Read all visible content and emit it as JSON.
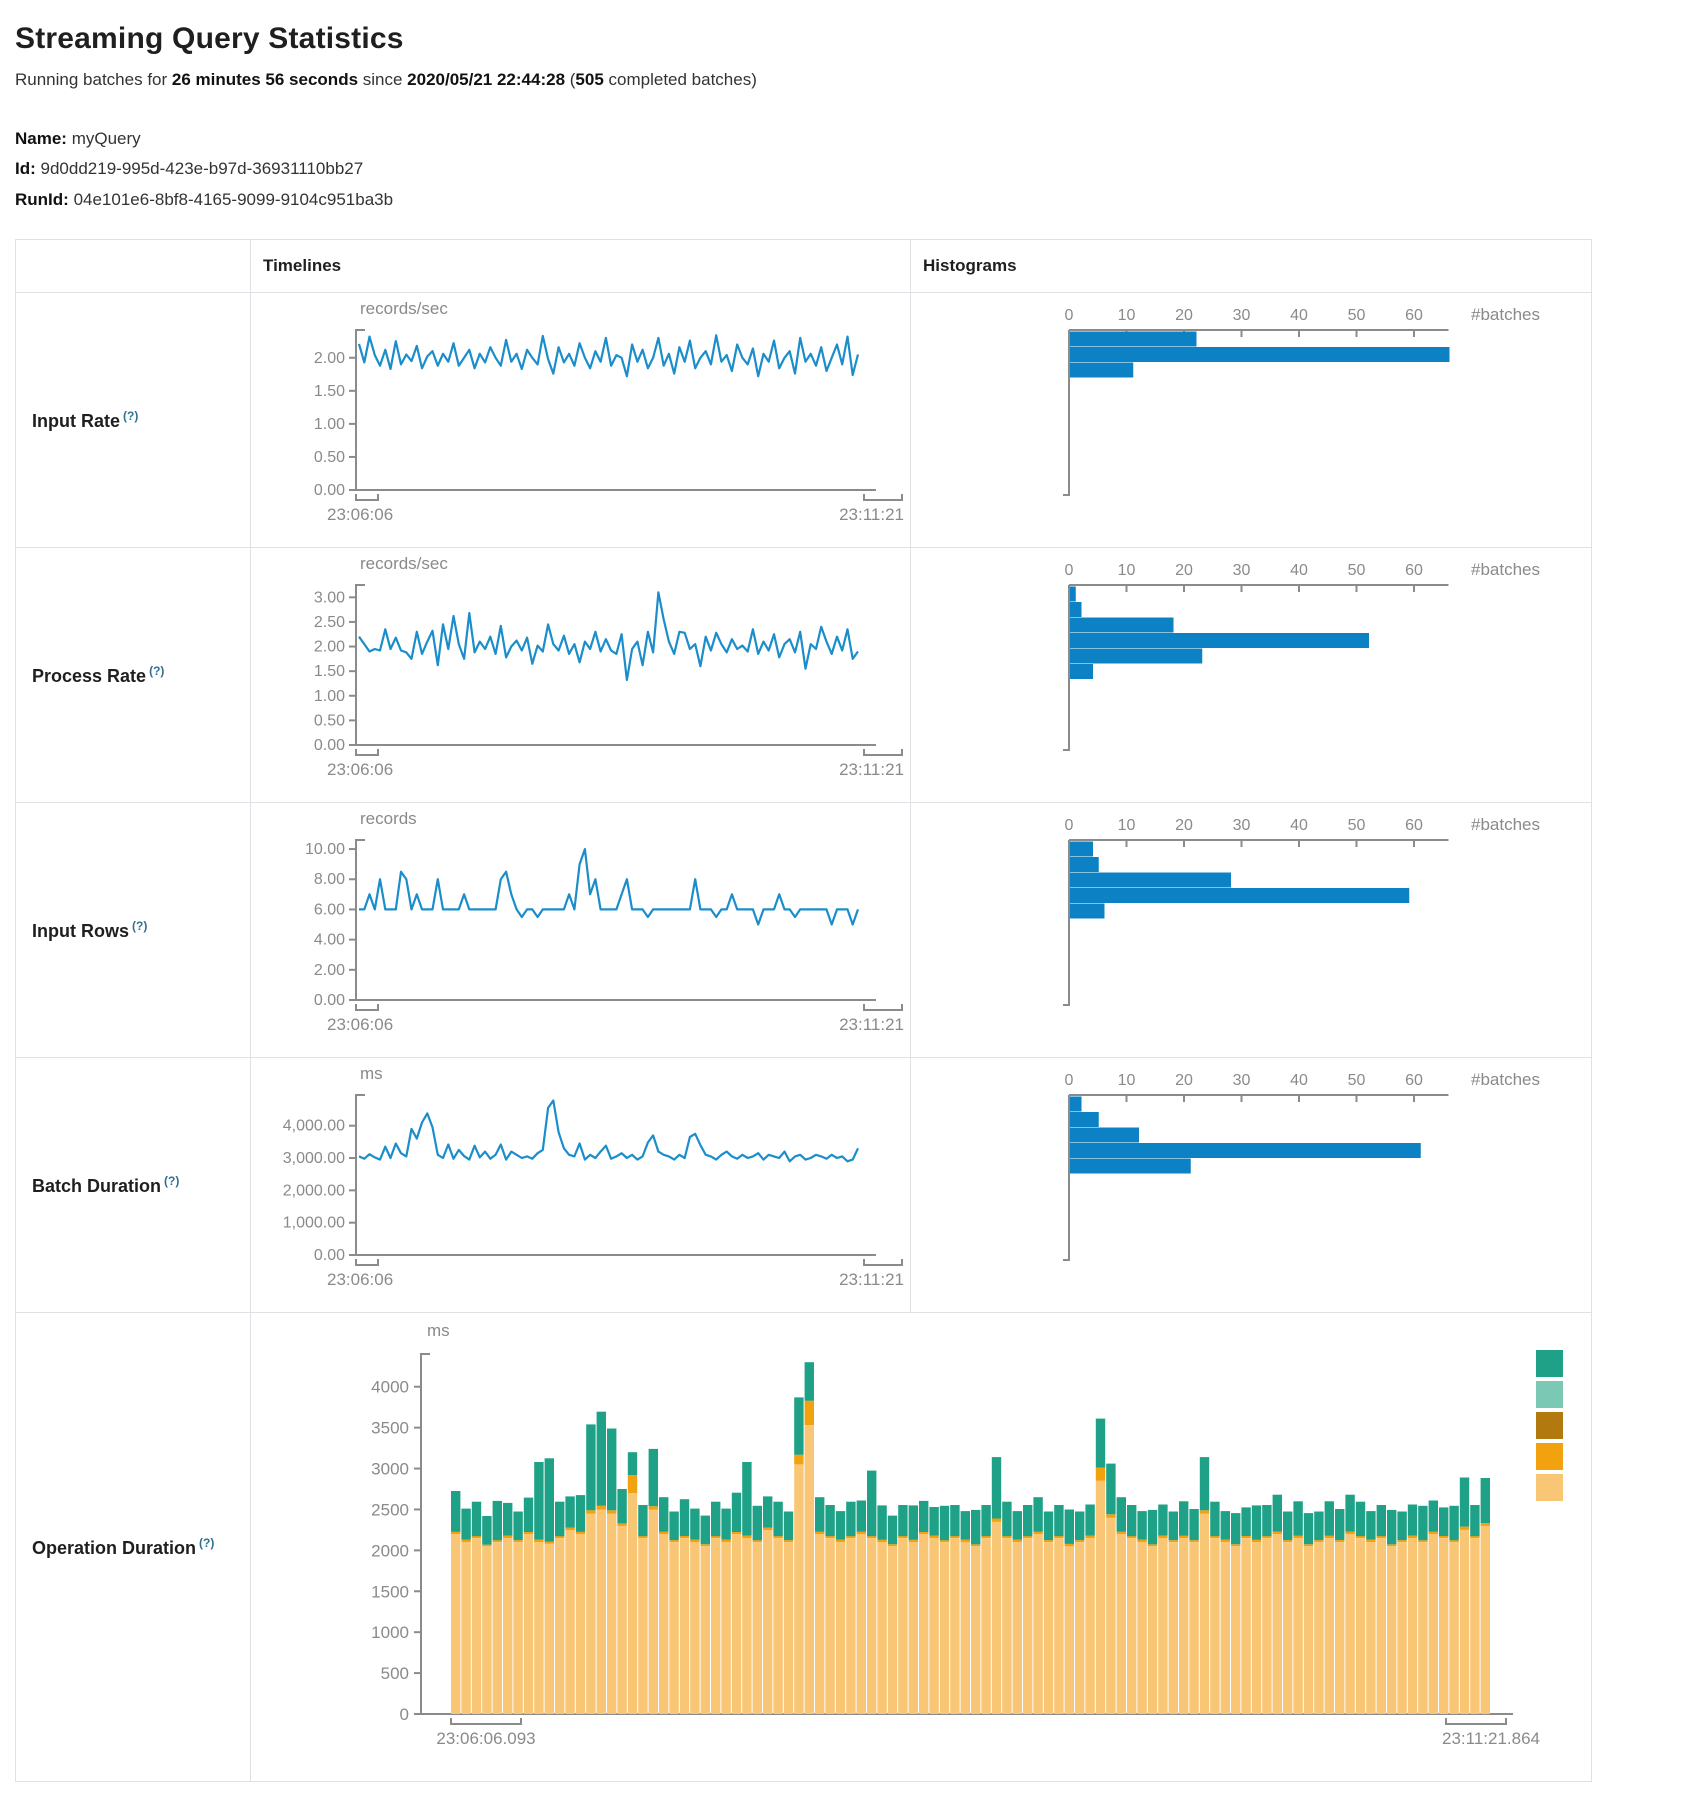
{
  "header": {
    "title": "Streaming Query Statistics",
    "running_prefix": "Running batches for ",
    "duration": "26 minutes 56 seconds",
    "since_text": " since ",
    "start_time": "2020/05/21 22:44:28",
    "batches_open": " (",
    "batches_count": "505",
    "batches_suffix": " completed batches)",
    "name_label": "Name:",
    "name_value": "myQuery",
    "id_label": "Id:",
    "id_value": "9d0dd219-995d-423e-b97d-36931110bb27",
    "runid_label": "RunId:",
    "runid_value": "04e101e6-8bf8-4165-9099-9104c951ba3b"
  },
  "table": {
    "col_timelines": "Timelines",
    "col_histograms": "Histograms",
    "rows": [
      {
        "label": "Input Rate",
        "help": "(?)"
      },
      {
        "label": "Process Rate",
        "help": "(?)"
      },
      {
        "label": "Input Rows",
        "help": "(?)"
      },
      {
        "label": "Batch Duration",
        "help": "(?)"
      },
      {
        "label": "Operation Duration",
        "help": "(?)"
      }
    ]
  },
  "colors": {
    "line": "#1b8dcb",
    "hist_bar": "#0c82c4",
    "axis": "#8b8b8b",
    "tick_text": "#8a8a8a",
    "teal": "#1fa187",
    "light_teal": "#7bc8b5",
    "ochre": "#b2790e",
    "orange": "#f2a10f",
    "tan": "#f8c674"
  },
  "chart_data": {
    "time_axis": {
      "start": "23:06:06",
      "end": "23:11:21"
    },
    "hist_axis": {
      "xticks": [
        "0",
        "10",
        "20",
        "30",
        "40",
        "50",
        "60"
      ],
      "xtick_values": [
        0,
        10,
        20,
        30,
        40,
        50,
        60
      ],
      "xmax": 66,
      "xlabel": "#batches"
    },
    "timelines": [
      {
        "name": "input-rate",
        "type": "line",
        "unit": "records/sec",
        "ymax": 2.42,
        "yticks": [
          {
            "v": 0,
            "label": "0.00"
          },
          {
            "v": 0.5,
            "label": "0.50"
          },
          {
            "v": 1,
            "label": "1.00"
          },
          {
            "v": 1.5,
            "label": "1.50"
          },
          {
            "v": 2,
            "label": "2.00"
          }
        ],
        "values": [
          2.21,
          1.93,
          2.32,
          2.04,
          1.88,
          2.12,
          1.83,
          2.25,
          1.9,
          2.05,
          1.95,
          2.18,
          1.84,
          2.02,
          2.1,
          1.88,
          2.06,
          1.94,
          2.22,
          1.88,
          2.0,
          2.12,
          1.84,
          2.06,
          1.93,
          2.16,
          2.0,
          1.88,
          2.27,
          1.94,
          2.06,
          1.83,
          2.12,
          2.0,
          1.9,
          2.33,
          1.98,
          1.76,
          2.16,
          1.93,
          2.06,
          1.88,
          2.22,
          2.0,
          1.84,
          2.1,
          1.94,
          2.3,
          1.88,
          2.04,
          2.0,
          1.72,
          2.2,
          1.94,
          2.12,
          1.84,
          2.0,
          2.3,
          1.88,
          2.06,
          1.76,
          2.16,
          1.94,
          2.26,
          1.84,
          2.0,
          2.1,
          1.9,
          2.34,
          1.94,
          2.04,
          1.8,
          2.2,
          2.0,
          1.9,
          2.14,
          1.72,
          2.06,
          1.94,
          2.26,
          1.84,
          2.0,
          2.1,
          1.76,
          2.3,
          1.94,
          2.06,
          1.88,
          2.16,
          1.8,
          2.0,
          2.2,
          1.9,
          2.32,
          1.74,
          2.05
        ]
      },
      {
        "name": "process-rate",
        "type": "line",
        "unit": "records/sec",
        "ymax": 3.25,
        "yticks": [
          {
            "v": 0,
            "label": "0.00"
          },
          {
            "v": 0.5,
            "label": "0.50"
          },
          {
            "v": 1,
            "label": "1.00"
          },
          {
            "v": 1.5,
            "label": "1.50"
          },
          {
            "v": 2,
            "label": "2.00"
          },
          {
            "v": 2.5,
            "label": "2.50"
          },
          {
            "v": 3,
            "label": "3.00"
          }
        ],
        "values": [
          2.2,
          2.05,
          1.9,
          1.95,
          1.92,
          2.35,
          1.95,
          2.18,
          1.92,
          1.88,
          1.75,
          2.3,
          1.85,
          2.1,
          2.32,
          1.62,
          2.45,
          1.95,
          2.62,
          2.05,
          1.75,
          2.68,
          1.88,
          2.1,
          1.95,
          2.2,
          1.85,
          2.42,
          1.78,
          2.0,
          2.12,
          1.92,
          2.18,
          1.65,
          2.02,
          1.9,
          2.45,
          2.05,
          1.92,
          2.22,
          1.85,
          2.05,
          1.68,
          2.1,
          1.95,
          2.3,
          1.9,
          2.15,
          1.92,
          1.85,
          2.25,
          1.32,
          1.95,
          2.1,
          1.62,
          2.3,
          1.88,
          3.1,
          2.55,
          2.1,
          1.85,
          2.3,
          2.28,
          1.95,
          2.05,
          1.6,
          2.2,
          1.92,
          2.28,
          2.05,
          1.88,
          2.15,
          1.95,
          2.02,
          1.9,
          2.35,
          1.85,
          2.1,
          1.92,
          2.25,
          1.78,
          2.05,
          2.15,
          1.88,
          2.3,
          1.55,
          2.05,
          1.95,
          2.4,
          2.1,
          1.85,
          2.2,
          1.92,
          2.35,
          1.75,
          1.9
        ]
      },
      {
        "name": "input-rows",
        "type": "line",
        "unit": "records",
        "ymax": 10.6,
        "yticks": [
          {
            "v": 0,
            "label": "0.00"
          },
          {
            "v": 2,
            "label": "2.00"
          },
          {
            "v": 4,
            "label": "4.00"
          },
          {
            "v": 6,
            "label": "6.00"
          },
          {
            "v": 8,
            "label": "8.00"
          },
          {
            "v": 10,
            "label": "10.00"
          }
        ],
        "values": [
          6,
          6,
          7,
          6,
          8,
          6,
          6,
          6,
          8.5,
          8,
          6,
          7,
          6,
          6,
          6,
          8,
          6,
          6,
          6,
          6,
          7,
          6,
          6,
          6,
          6,
          6,
          6,
          8,
          8.5,
          7,
          6,
          5.5,
          6,
          6,
          5.5,
          6,
          6,
          6,
          6,
          6,
          7,
          6,
          9,
          10,
          7,
          8,
          6,
          6,
          6,
          6,
          7,
          8,
          6,
          6,
          6,
          5.5,
          6,
          6,
          6,
          6,
          6,
          6,
          6,
          6,
          8,
          6,
          6,
          6,
          5.5,
          6,
          6,
          7,
          6,
          6,
          6,
          6,
          5,
          6,
          6,
          6,
          7,
          6,
          6,
          5.5,
          6,
          6,
          6,
          6,
          6,
          6,
          5,
          6,
          6,
          6,
          5,
          6
        ]
      },
      {
        "name": "batch-duration",
        "type": "line",
        "unit": "ms",
        "ymax": 4950,
        "yticks": [
          {
            "v": 0,
            "label": "0.00"
          },
          {
            "v": 1000,
            "label": "1,000.00"
          },
          {
            "v": 2000,
            "label": "2,000.00"
          },
          {
            "v": 3000,
            "label": "3,000.00"
          },
          {
            "v": 4000,
            "label": "4,000.00"
          }
        ],
        "values": [
          3050,
          2980,
          3120,
          3020,
          2950,
          3350,
          3000,
          3450,
          3150,
          3050,
          3900,
          3600,
          4100,
          4380,
          3950,
          3100,
          3000,
          3420,
          2980,
          3250,
          3060,
          2950,
          3380,
          3020,
          3200,
          2980,
          3100,
          3420,
          2950,
          3200,
          3100,
          3000,
          3050,
          2980,
          3150,
          3250,
          4550,
          4780,
          3800,
          3300,
          3100,
          3050,
          3450,
          2950,
          3100,
          3000,
          3200,
          3380,
          2980,
          3050,
          3150,
          3000,
          3100,
          2950,
          3050,
          3480,
          3700,
          3200,
          3100,
          3050,
          2950,
          3100,
          3000,
          3650,
          3750,
          3400,
          3100,
          3050,
          2950,
          3100,
          3200,
          3050,
          2980,
          3100,
          3000,
          3050,
          3150,
          2950,
          3100,
          3050,
          3000,
          3200,
          2900,
          3050,
          3100,
          2950,
          3000,
          3100,
          3050,
          2980,
          3100,
          3000,
          3050,
          2900,
          2950,
          3300
        ]
      }
    ],
    "histograms": [
      {
        "name": "input-rate-histogram",
        "type": "bar",
        "counts": [
          22,
          66,
          11
        ]
      },
      {
        "name": "process-rate-histogram",
        "type": "bar",
        "counts": [
          1,
          2,
          18,
          52,
          23,
          4
        ]
      },
      {
        "name": "input-rows-histogram",
        "type": "bar",
        "counts": [
          4,
          5,
          28,
          59,
          6
        ]
      },
      {
        "name": "batch-duration-histogram",
        "type": "bar",
        "counts": [
          2,
          5,
          12,
          61,
          21
        ]
      }
    ],
    "operation_duration": {
      "name": "operation-duration",
      "type": "stacked-bar",
      "unit": "ms",
      "ymax": 4400,
      "yticks": [
        {
          "v": 0,
          "label": "0"
        },
        {
          "v": 500,
          "label": "500"
        },
        {
          "v": 1000,
          "label": "1000"
        },
        {
          "v": 1500,
          "label": "1500"
        },
        {
          "v": 2000,
          "label": "2000"
        },
        {
          "v": 2500,
          "label": "2500"
        },
        {
          "v": 3000,
          "label": "3000"
        },
        {
          "v": 3500,
          "label": "3500"
        },
        {
          "v": 4000,
          "label": "4000"
        }
      ],
      "x_start": "23:06:06.093",
      "x_end": "23:11:21.864",
      "legend_colors": [
        "#1fa187",
        "#7bc8b5",
        "#b2790e",
        "#f2a10f",
        "#f8c674"
      ],
      "series": [
        {
          "name": "segment-tan",
          "color_ref": "tan",
          "values": [
            2200,
            2100,
            2150,
            2050,
            2100,
            2150,
            2100,
            2200,
            2100,
            2080,
            2150,
            2250,
            2200,
            2450,
            2500,
            2450,
            2300,
            2700,
            2150,
            2500,
            2200,
            2100,
            2150,
            2100,
            2050,
            2150,
            2100,
            2200,
            2150,
            2100,
            2250,
            2150,
            2100,
            3050,
            3530,
            2200,
            2150,
            2100,
            2150,
            2200,
            2150,
            2100,
            2050,
            2150,
            2100,
            2200,
            2150,
            2100,
            2150,
            2100,
            2050,
            2150,
            2350,
            2150,
            2100,
            2150,
            2200,
            2100,
            2150,
            2050,
            2100,
            2150,
            2850,
            2400,
            2200,
            2150,
            2100,
            2050,
            2150,
            2100,
            2150,
            2100,
            2450,
            2150,
            2100,
            2050,
            2150,
            2100,
            2150,
            2200,
            2100,
            2150,
            2050,
            2100,
            2150,
            2100,
            2200,
            2150,
            2100,
            2150,
            2050,
            2100,
            2150,
            2100,
            2200,
            2150,
            2100,
            2250,
            2150,
            2300
          ]
        },
        {
          "name": "segment-orange",
          "color_ref": "orange",
          "values": [
            25,
            30,
            25,
            20,
            25,
            30,
            25,
            25,
            30,
            25,
            25,
            30,
            25,
            40,
            45,
            40,
            30,
            220,
            25,
            40,
            30,
            25,
            25,
            30,
            25,
            25,
            30,
            25,
            30,
            25,
            30,
            25,
            25,
            120,
            300,
            30,
            25,
            30,
            25,
            30,
            25,
            30,
            25,
            25,
            30,
            25,
            30,
            25,
            25,
            30,
            25,
            25,
            40,
            25,
            30,
            25,
            30,
            25,
            25,
            30,
            25,
            30,
            160,
            40,
            30,
            25,
            30,
            25,
            30,
            25,
            30,
            25,
            40,
            25,
            30,
            25,
            25,
            30,
            25,
            30,
            25,
            30,
            25,
            25,
            30,
            25,
            30,
            25,
            30,
            25,
            25,
            25,
            30,
            25,
            30,
            25,
            25,
            40,
            25,
            35
          ]
        },
        {
          "name": "segment-teal",
          "color_ref": "teal",
          "values": [
            500,
            380,
            420,
            350,
            480,
            400,
            350,
            420,
            950,
            1020,
            420,
            380,
            450,
            1050,
            1150,
            1000,
            420,
            280,
            380,
            700,
            420,
            350,
            450,
            380,
            350,
            420,
            380,
            480,
            900,
            420,
            380,
            420,
            350,
            700,
            470,
            420,
            380,
            350,
            420,
            380,
            800,
            420,
            350,
            380,
            420,
            380,
            350,
            420,
            380,
            350,
            420,
            380,
            750,
            420,
            350,
            380,
            420,
            350,
            380,
            420,
            350,
            380,
            600,
            620,
            420,
            380,
            350,
            420,
            380,
            350,
            420,
            380,
            650,
            420,
            350,
            380,
            350,
            420,
            380,
            450,
            350,
            420,
            380,
            350,
            420,
            380,
            450,
            420,
            350,
            380,
            420,
            350,
            380,
            420,
            380,
            350,
            420,
            600,
            380,
            550
          ]
        }
      ]
    }
  }
}
